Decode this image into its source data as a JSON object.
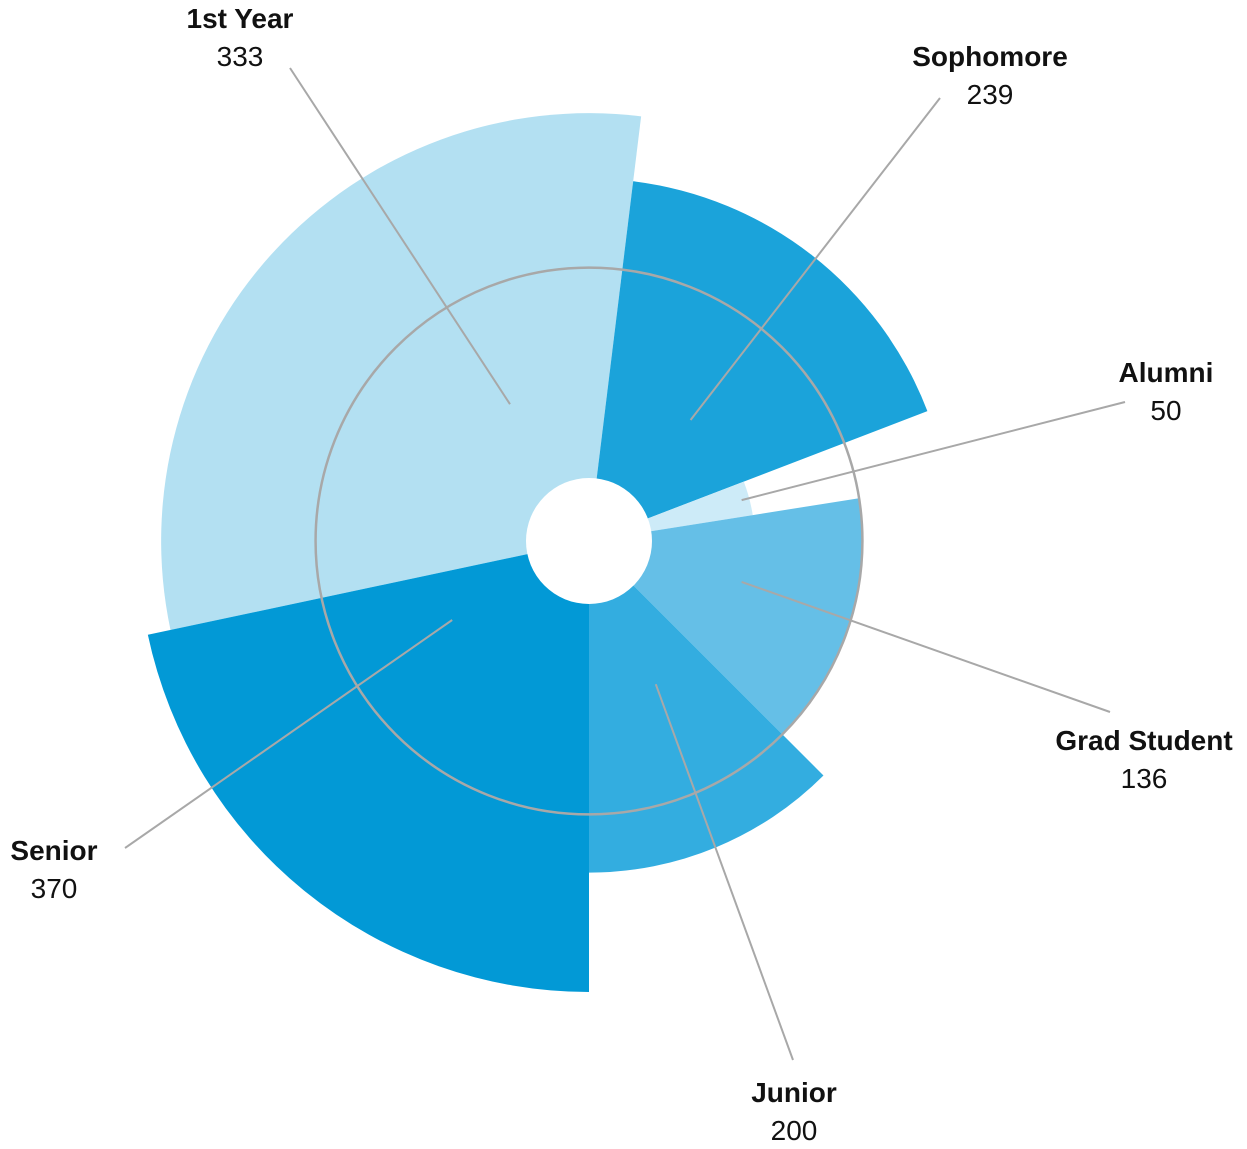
{
  "chart_data": {
    "type": "polar-area",
    "title": "",
    "max_value": 370,
    "reference_ring_value": 136,
    "segments": [
      {
        "label": "1st Year",
        "value": 333,
        "color": "#b3e0f2",
        "start_deg": 258,
        "end_deg": 367
      },
      {
        "label": "Sophomore",
        "value": 239,
        "color": "#1ba3da",
        "start_deg": 7,
        "end_deg": 69
      },
      {
        "label": "Alumni",
        "value": 50,
        "color": "#cdebf8",
        "start_deg": 69,
        "end_deg": 81
      },
      {
        "label": "Grad Student",
        "value": 136,
        "color": "#65bfe7",
        "start_deg": 81,
        "end_deg": 135
      },
      {
        "label": "Junior",
        "value": 200,
        "color": "#33ade0",
        "start_deg": 135,
        "end_deg": 180
      },
      {
        "label": "Senior",
        "value": 370,
        "color": "#0299d6",
        "start_deg": 180,
        "end_deg": 258
      }
    ]
  }
}
